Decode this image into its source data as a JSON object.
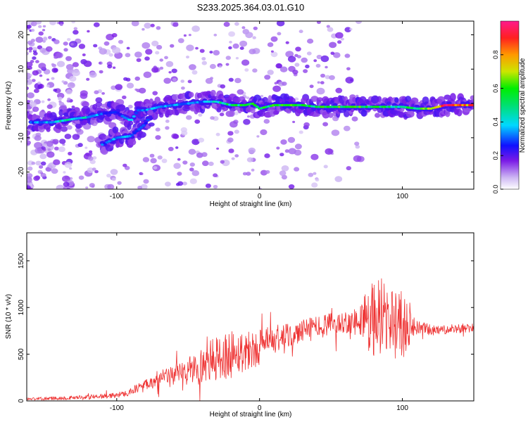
{
  "figure_title": "S233.2025.364.03.01.G10",
  "chart_data": [
    {
      "type": "heatmap",
      "title": "S233.2025.364.03.01.G10",
      "xlabel": "Height of straight line (km)",
      "ylabel": "Frequency (Hz)",
      "xlim": [
        -163,
        150
      ],
      "ylim": [
        -25,
        24
      ],
      "xticks": [
        -100,
        0,
        100
      ],
      "yticks": [
        -20,
        -10,
        0,
        10,
        20
      ],
      "colorbar": {
        "label": "Normalized spectral amplitude",
        "range": [
          0,
          1
        ],
        "ticks": [
          0.0,
          0.2,
          0.4,
          0.6,
          0.8
        ]
      },
      "ridge": {
        "x": [
          -160,
          -145,
          -130,
          -120,
          -110,
          -100,
          -95,
          -90,
          -85,
          -80,
          -75,
          -70,
          -60,
          -50,
          -40,
          -30,
          -20,
          -10,
          -5,
          0,
          10,
          20,
          30,
          40,
          50,
          60,
          70,
          80,
          90,
          100,
          110,
          120,
          130,
          140,
          150
        ],
        "freq": [
          -5.5,
          -5.5,
          -4.5,
          -4.0,
          -3.0,
          -2.5,
          -4.0,
          -5.0,
          -2.0,
          -2.0,
          -1.5,
          -1.0,
          -0.5,
          0.0,
          0.5,
          0.5,
          -0.5,
          -0.5,
          0.0,
          -1.5,
          -0.5,
          -0.5,
          -0.5,
          -1.0,
          -1.0,
          -1.0,
          -1.0,
          -1.0,
          -1.0,
          -1.0,
          -1.5,
          -1.5,
          -0.5,
          -0.5,
          -0.5
        ],
        "amplitude": [
          0.3,
          0.4,
          0.45,
          0.4,
          0.3,
          0.25,
          0.3,
          0.35,
          0.3,
          0.35,
          0.4,
          0.35,
          0.35,
          0.35,
          0.3,
          0.45,
          0.5,
          0.55,
          0.6,
          0.55,
          0.55,
          0.6,
          0.55,
          0.55,
          0.55,
          0.6,
          0.6,
          0.55,
          0.5,
          0.5,
          0.55,
          0.75,
          0.95,
          0.95,
          0.8
        ]
      },
      "branch": {
        "x": [
          -110,
          -100,
          -90,
          -80,
          -75
        ],
        "freq": [
          -12.0,
          -10.0,
          -9.5,
          -6.0,
          -3.0
        ],
        "amplitude": [
          0.3,
          0.35,
          0.35,
          0.3,
          0.25
        ]
      }
    },
    {
      "type": "line",
      "xlabel": "Height of straight line (km)",
      "ylabel": "SNR (10 * v/v)",
      "xlim": [
        -163,
        150
      ],
      "ylim": [
        0,
        1800
      ],
      "xticks": [
        -100,
        0,
        100
      ],
      "yticks": [
        0,
        500,
        1000,
        1500
      ],
      "series": [
        {
          "name": "SNR",
          "color": "#ee3333",
          "x": [
            -163,
            -140,
            -120,
            -100,
            -90,
            -80,
            -70,
            -60,
            -50,
            -40,
            -30,
            -20,
            -10,
            0,
            10,
            20,
            30,
            40,
            50,
            60,
            70,
            75,
            80,
            85,
            90,
            95,
            100,
            105,
            110,
            120,
            130,
            140,
            150
          ],
          "y": [
            20,
            30,
            40,
            60,
            100,
            180,
            240,
            280,
            320,
            380,
            450,
            500,
            540,
            580,
            640,
            690,
            740,
            790,
            820,
            850,
            860,
            880,
            900,
            880,
            860,
            840,
            820,
            800,
            780,
            760,
            760,
            770,
            780
          ],
          "spread": [
            15,
            20,
            25,
            30,
            40,
            60,
            80,
            120,
            160,
            200,
            250,
            260,
            220,
            200,
            160,
            140,
            130,
            130,
            120,
            120,
            150,
            350,
            450,
            450,
            350,
            400,
            350,
            200,
            80,
            60,
            50,
            50,
            50
          ]
        }
      ]
    }
  ]
}
